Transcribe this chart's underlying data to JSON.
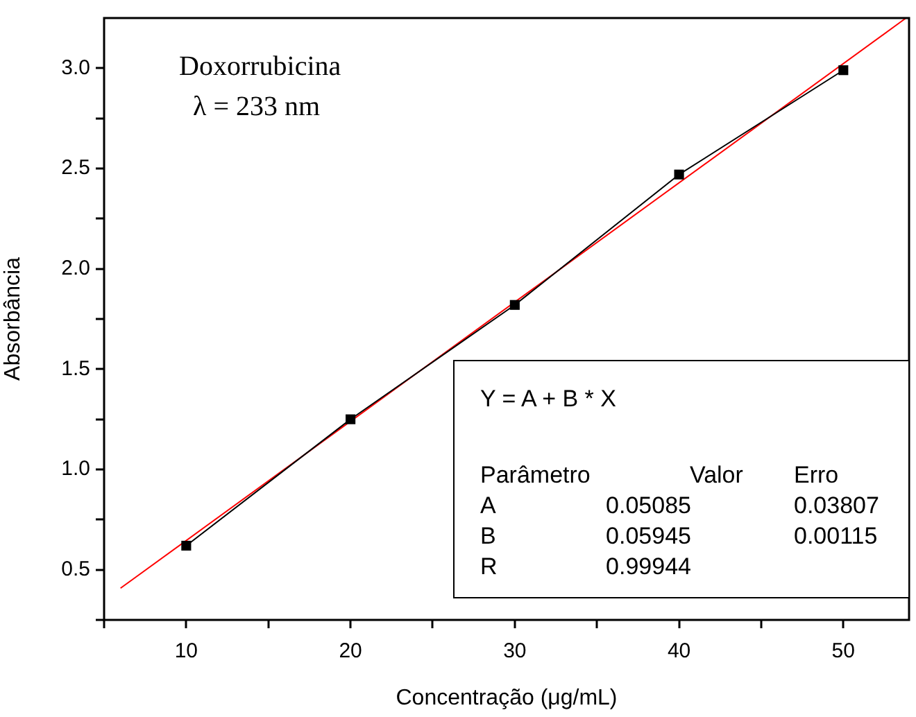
{
  "chart_data": {
    "type": "line",
    "xlabel": "Concentração (μg/mL)",
    "ylabel": "Absorbância",
    "x": [
      10,
      20,
      30,
      40,
      50
    ],
    "series": [
      {
        "color": "#000000",
        "marker": "square",
        "values": [
          0.62,
          1.25,
          1.82,
          2.47,
          2.99
        ]
      },
      {
        "color": "#ff0000",
        "marker": "none",
        "x": [
          6,
          53.8
        ],
        "values": [
          0.408,
          3.249
        ]
      }
    ],
    "xlim": [
      5,
      54
    ],
    "xticks": [
      {
        "value": 5,
        "label": null
      },
      10,
      {
        "value": 15,
        "label": null
      },
      20,
      {
        "value": 25,
        "label": null
      },
      30,
      {
        "value": 35,
        "label": null
      },
      40,
      {
        "value": 45,
        "label": null
      },
      50
    ],
    "ylim": [
      0.25,
      3.25
    ],
    "yticks": [
      {
        "value": 0.25,
        "label": null
      },
      0.5,
      {
        "value": 0.75,
        "label": null
      },
      {
        "value": 1.0,
        "label": "1.0"
      },
      {
        "value": 1.25,
        "label": null
      },
      1.5,
      {
        "value": 1.75,
        "label": null
      },
      {
        "value": 2.0,
        "label": "2.0"
      },
      {
        "value": 2.25,
        "label": null
      },
      2.5,
      {
        "value": 2.75,
        "label": null
      },
      {
        "value": 3.0,
        "label": "3.0"
      }
    ],
    "grid": false,
    "legend": false,
    "annotations": [
      "Doxorrubicina",
      "λ = 233 nm",
      "Y = A + B * X",
      "Parâmetro",
      "Valor",
      "Erro",
      "A",
      "0.05085",
      "0.03807",
      "B",
      "0.05945",
      "0.00115",
      "R",
      "0.99944"
    ]
  }
}
